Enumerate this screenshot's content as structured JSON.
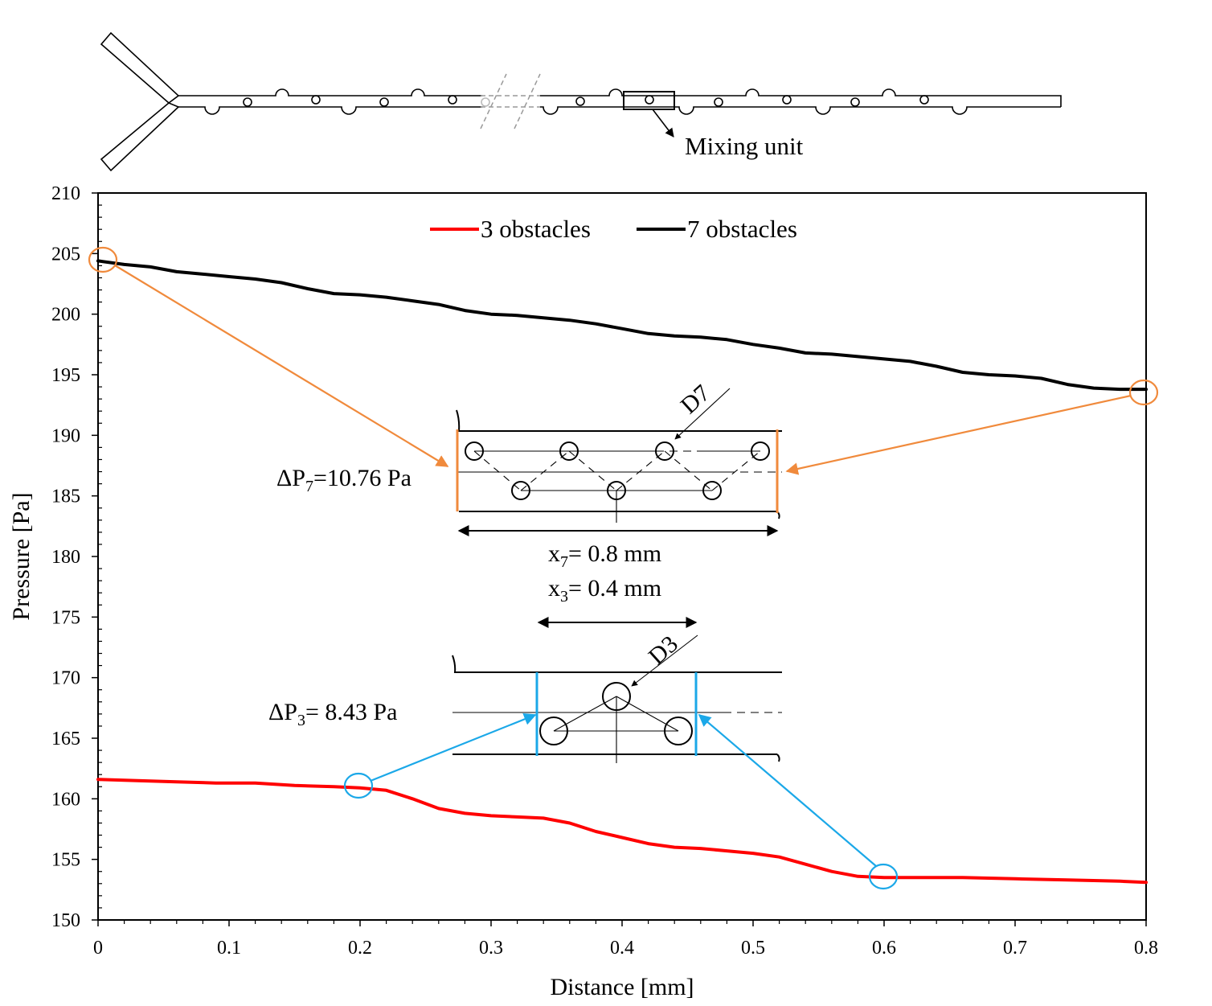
{
  "chart_data": {
    "type": "line",
    "xlabel": "Distance [mm]",
    "ylabel": "Pressure [Pa]",
    "xlim": [
      0,
      0.8
    ],
    "ylim": [
      150,
      210
    ],
    "xticks": [
      "0",
      "0.1",
      "0.2",
      "0.3",
      "0.4",
      "0.5",
      "0.6",
      "0.7",
      "0.8"
    ],
    "yticks": [
      "150",
      "155",
      "160",
      "165",
      "170",
      "175",
      "180",
      "185",
      "190",
      "195",
      "200",
      "205",
      "210"
    ],
    "grid": false,
    "legend_position": "top-center",
    "series": [
      {
        "name": "3 obstacles",
        "color": "#ff0000",
        "x": [
          0,
          0.03,
          0.06,
          0.09,
          0.12,
          0.15,
          0.18,
          0.2,
          0.22,
          0.24,
          0.26,
          0.28,
          0.3,
          0.32,
          0.34,
          0.36,
          0.38,
          0.4,
          0.42,
          0.44,
          0.46,
          0.48,
          0.5,
          0.52,
          0.54,
          0.56,
          0.58,
          0.6,
          0.63,
          0.66,
          0.7,
          0.74,
          0.78,
          0.8
        ],
        "values": [
          161.6,
          161.5,
          161.4,
          161.3,
          161.3,
          161.1,
          161.0,
          160.9,
          160.7,
          160.0,
          159.2,
          158.8,
          158.6,
          158.5,
          158.4,
          158.0,
          157.3,
          156.8,
          156.3,
          156.0,
          155.9,
          155.7,
          155.5,
          155.2,
          154.6,
          154.0,
          153.6,
          153.5,
          153.5,
          153.5,
          153.4,
          153.3,
          153.2,
          153.1
        ]
      },
      {
        "name": "7 obstacles",
        "color": "#000000",
        "x": [
          0,
          0.02,
          0.04,
          0.06,
          0.08,
          0.1,
          0.12,
          0.14,
          0.16,
          0.18,
          0.2,
          0.22,
          0.24,
          0.26,
          0.28,
          0.3,
          0.32,
          0.34,
          0.36,
          0.38,
          0.4,
          0.42,
          0.44,
          0.46,
          0.48,
          0.5,
          0.52,
          0.54,
          0.56,
          0.58,
          0.6,
          0.62,
          0.64,
          0.66,
          0.68,
          0.7,
          0.72,
          0.74,
          0.76,
          0.78,
          0.8
        ],
        "values": [
          204.4,
          204.1,
          203.9,
          203.5,
          203.3,
          203.1,
          202.9,
          202.6,
          202.1,
          201.7,
          201.6,
          201.4,
          201.1,
          200.8,
          200.3,
          200.0,
          199.9,
          199.7,
          199.5,
          199.2,
          198.8,
          198.4,
          198.2,
          198.1,
          197.9,
          197.5,
          197.2,
          196.8,
          196.7,
          196.5,
          196.3,
          196.1,
          195.7,
          195.2,
          195.0,
          194.9,
          194.7,
          194.2,
          193.9,
          193.8,
          193.8
        ]
      }
    ],
    "annotations": {
      "mixing_unit_label": "Mixing unit",
      "dp7_label": "ΔP",
      "dp7_sub": "7",
      "dp7_value": "=10.76 Pa",
      "dp3_label": "ΔP",
      "dp3_sub": "3",
      "dp3_value": "= 8.43 Pa",
      "x7_label": "x",
      "x7_sub": "7",
      "x7_value": "= 0.8 mm",
      "x3_label": "x",
      "x3_sub": "3",
      "x3_value": "= 0.4 mm",
      "d7_label": "D7",
      "d3_label": "D3"
    },
    "colors": {
      "orange": "#f08a3c",
      "blue": "#1ba8e8"
    }
  }
}
